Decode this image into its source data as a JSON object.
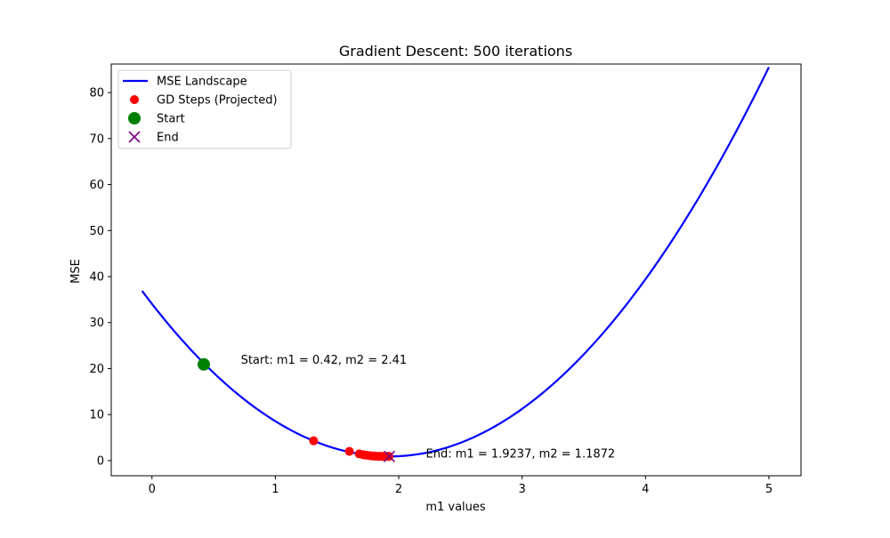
{
  "chart_data": {
    "type": "line",
    "title": "Gradient Descent: 500 iterations",
    "xlabel": "m1 values",
    "ylabel": "MSE",
    "xlim": [
      -0.33,
      5.26
    ],
    "ylim": [
      -3.3,
      86.2
    ],
    "xticks": [
      0,
      1,
      2,
      3,
      4,
      5
    ],
    "yticks": [
      0,
      10,
      20,
      30,
      40,
      50,
      60,
      70,
      80
    ],
    "grid": false,
    "legend_position": "upper-left",
    "series": [
      {
        "name": "MSE Landscape",
        "kind": "line",
        "color": "#0000ff",
        "curve": {
          "form": "quadratic",
          "vertex_x": 1.925,
          "vertex_y": 0.9,
          "coef": 8.95,
          "x_start": -0.08,
          "x_end": 5.0
        }
      },
      {
        "name": "GD Steps (Projected)",
        "kind": "scatter",
        "color": "#ff0000",
        "points": [
          {
            "x": 1.31,
            "y": 4.3
          },
          {
            "x": 1.6,
            "y": 2.0
          },
          {
            "x": 1.68,
            "y": 1.45
          },
          {
            "x": 1.71,
            "y": 1.3
          },
          {
            "x": 1.73,
            "y": 1.2
          },
          {
            "x": 1.75,
            "y": 1.12
          },
          {
            "x": 1.77,
            "y": 1.06
          },
          {
            "x": 1.79,
            "y": 1.0
          },
          {
            "x": 1.81,
            "y": 0.96
          },
          {
            "x": 1.83,
            "y": 0.94
          },
          {
            "x": 1.85,
            "y": 0.92
          },
          {
            "x": 1.87,
            "y": 0.91
          },
          {
            "x": 1.89,
            "y": 0.9
          },
          {
            "x": 1.91,
            "y": 0.9
          },
          {
            "x": 1.92,
            "y": 0.9
          }
        ]
      },
      {
        "name": "Start",
        "kind": "marker",
        "color": "#008000",
        "points": [
          {
            "x": 0.42,
            "y": 20.9
          }
        ]
      },
      {
        "name": "End",
        "kind": "x-marker",
        "color": "#800080",
        "points": [
          {
            "x": 1.9237,
            "y": 0.9
          }
        ]
      }
    ],
    "annotations": [
      {
        "text": "Start: m1 = 0.42, m2 = 2.41",
        "x": 0.72,
        "y": 20.9
      },
      {
        "text": "End: m1 = 1.9237, m2 = 1.1872",
        "x": 2.22,
        "y": 0.5
      }
    ]
  }
}
